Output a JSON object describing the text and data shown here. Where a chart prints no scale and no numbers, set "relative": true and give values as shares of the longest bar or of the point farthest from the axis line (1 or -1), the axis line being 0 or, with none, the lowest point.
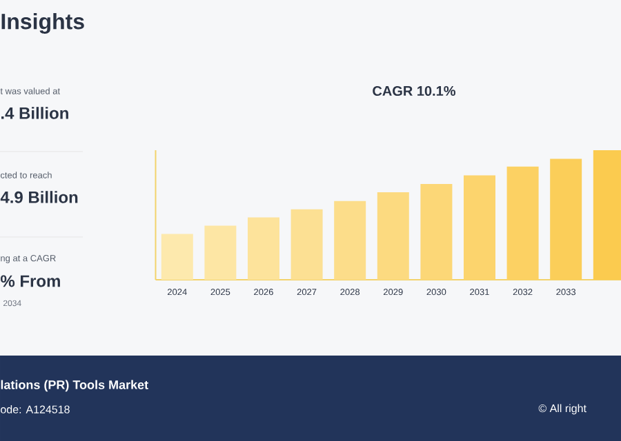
{
  "chart_data": {
    "type": "bar",
    "title": "CAGR 10.1%",
    "relative": true,
    "categories": [
      "2024",
      "2025",
      "2026",
      "2027",
      "2028",
      "2029",
      "2030",
      "2031",
      "2032",
      "2033",
      null
    ],
    "values": [
      0.353,
      0.417,
      0.481,
      0.544,
      0.608,
      0.675,
      0.739,
      0.806,
      0.873,
      0.933,
      1
    ],
    "colors": [
      "#fde9ad",
      "#fde6a4",
      "#fde39b",
      "#fce093",
      "#fcdd8a",
      "#fcda80",
      "#fcd777",
      "#fcd46d",
      "#fcd163",
      "#fbce59",
      "#fbcb4f"
    ],
    "annotations": [
      "Insights",
      "t was valued at",
      ".4 Billion",
      "cted to reach",
      "4.9 Billion",
      "ng at a CAGR",
      "% From",
      "2034",
      "lations (PR) Tools Market",
      "ode: A124518",
      "© All right"
    ]
  }
}
